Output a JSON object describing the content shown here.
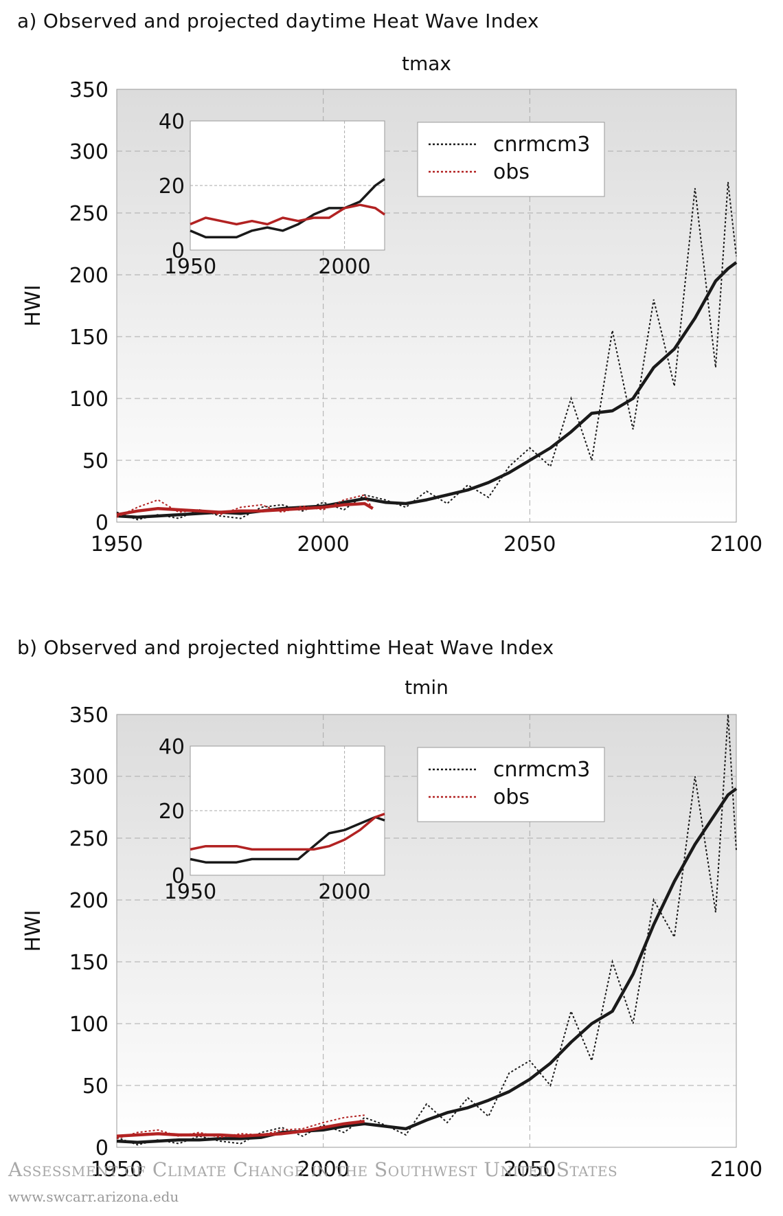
{
  "chart_data": [
    {
      "type": "line",
      "panel_title": "a) Observed and projected daytime Heat Wave Index",
      "title": "tmax",
      "xlabel": "",
      "ylabel": "HWI",
      "xlim": [
        1950,
        2100
      ],
      "ylim": [
        0,
        350
      ],
      "x_ticks": [
        1950,
        2000,
        2050,
        2100
      ],
      "y_ticks": [
        0,
        50,
        100,
        150,
        200,
        250,
        300,
        350
      ],
      "grid": true,
      "legend_position": "top-right",
      "legend": [
        {
          "name": "cnrmcm3",
          "color": "#1a1a1a",
          "style": "dotted"
        },
        {
          "name": "obs",
          "color": "#b22222",
          "style": "dotted"
        }
      ],
      "series": [
        {
          "name": "cnrmcm3",
          "color": "#1a1a1a",
          "x": [
            1950,
            1955,
            1960,
            1965,
            1970,
            1975,
            1980,
            1985,
            1990,
            1995,
            2000,
            2005,
            2010,
            2015,
            2020,
            2025,
            2030,
            2035,
            2040,
            2045,
            2050,
            2055,
            2060,
            2065,
            2070,
            2075,
            2080,
            2085,
            2090,
            2095,
            2098,
            2100
          ],
          "smoothed": [
            5,
            4,
            5,
            6,
            7,
            8,
            7,
            9,
            11,
            12,
            13,
            16,
            19,
            16,
            15,
            18,
            22,
            26,
            32,
            40,
            50,
            60,
            73,
            88,
            90,
            100,
            125,
            140,
            165,
            195,
            205,
            210
          ],
          "annual": [
            8,
            2,
            6,
            3,
            10,
            5,
            3,
            12,
            14,
            9,
            16,
            10,
            22,
            18,
            12,
            25,
            15,
            30,
            20,
            45,
            60,
            45,
            100,
            50,
            155,
            75,
            180,
            110,
            270,
            125,
            275,
            215
          ]
        },
        {
          "name": "obs",
          "color": "#b22222",
          "x": [
            1950,
            1955,
            1960,
            1965,
            1970,
            1975,
            1980,
            1985,
            1990,
            1995,
            2000,
            2005,
            2010,
            2012
          ],
          "smoothed": [
            6,
            9,
            11,
            10,
            9,
            8,
            9,
            9,
            10,
            11,
            12,
            14,
            15,
            11
          ],
          "annual": [
            4,
            12,
            18,
            8,
            10,
            6,
            12,
            14,
            8,
            13,
            10,
            18,
            22,
            10
          ]
        }
      ],
      "inset": {
        "xlim": [
          1950,
          2013
        ],
        "ylim": [
          0,
          40
        ],
        "x_ticks": [
          1950,
          2000
        ],
        "y_ticks": [
          0,
          20,
          40
        ],
        "series": [
          {
            "name": "cnrmcm3",
            "x": [
              1950,
              1955,
              1960,
              1965,
              1970,
              1975,
              1980,
              1985,
              1990,
              1995,
              2000,
              2005,
              2010,
              2013
            ],
            "smoothed": [
              6,
              4,
              4,
              4,
              6,
              7,
              6,
              8,
              11,
              13,
              13,
              15,
              20,
              22
            ]
          },
          {
            "name": "obs",
            "x": [
              1950,
              1955,
              1960,
              1965,
              1970,
              1975,
              1980,
              1985,
              1990,
              1995,
              2000,
              2005,
              2010,
              2013
            ],
            "smoothed": [
              8,
              10,
              9,
              8,
              9,
              8,
              10,
              9,
              10,
              10,
              13,
              14,
              13,
              11
            ]
          }
        ]
      }
    },
    {
      "type": "line",
      "panel_title": "b) Observed and projected nighttime Heat Wave Index",
      "title": "tmin",
      "xlabel": "",
      "ylabel": "HWI",
      "xlim": [
        1950,
        2100
      ],
      "ylim": [
        0,
        350
      ],
      "x_ticks": [
        1950,
        2000,
        2050,
        2100
      ],
      "y_ticks": [
        0,
        50,
        100,
        150,
        200,
        250,
        300,
        350
      ],
      "grid": true,
      "legend_position": "top-right",
      "legend": [
        {
          "name": "cnrmcm3",
          "color": "#1a1a1a",
          "style": "dotted"
        },
        {
          "name": "obs",
          "color": "#b22222",
          "style": "dotted"
        }
      ],
      "series": [
        {
          "name": "cnrmcm3",
          "color": "#1a1a1a",
          "x": [
            1950,
            1955,
            1960,
            1965,
            1970,
            1975,
            1980,
            1985,
            1990,
            1995,
            2000,
            2005,
            2010,
            2015,
            2020,
            2025,
            2030,
            2035,
            2040,
            2045,
            2050,
            2055,
            2060,
            2065,
            2070,
            2075,
            2080,
            2085,
            2090,
            2095,
            2098,
            2100
          ],
          "smoothed": [
            5,
            4,
            5,
            6,
            6,
            7,
            7,
            8,
            12,
            13,
            14,
            17,
            19,
            17,
            15,
            22,
            28,
            32,
            38,
            45,
            55,
            68,
            85,
            100,
            110,
            140,
            180,
            215,
            245,
            270,
            285,
            290
          ],
          "annual": [
            8,
            2,
            6,
            3,
            9,
            5,
            3,
            12,
            16,
            9,
            18,
            12,
            24,
            18,
            10,
            35,
            20,
            40,
            25,
            60,
            70,
            50,
            110,
            70,
            150,
            100,
            200,
            170,
            300,
            190,
            350,
            240
          ]
        },
        {
          "name": "obs",
          "color": "#b22222",
          "x": [
            1950,
            1955,
            1960,
            1965,
            1970,
            1975,
            1980,
            1985,
            1990,
            1995,
            2000,
            2005,
            2010
          ],
          "smoothed": [
            9,
            10,
            11,
            10,
            10,
            10,
            9,
            10,
            11,
            13,
            16,
            19,
            21
          ],
          "annual": [
            7,
            12,
            14,
            9,
            12,
            8,
            11,
            10,
            14,
            15,
            20,
            24,
            26
          ]
        }
      ],
      "inset": {
        "xlim": [
          1950,
          2013
        ],
        "ylim": [
          0,
          40
        ],
        "x_ticks": [
          1950,
          2000
        ],
        "y_ticks": [
          0,
          20,
          40
        ],
        "series": [
          {
            "name": "cnrmcm3",
            "x": [
              1950,
              1955,
              1960,
              1965,
              1970,
              1975,
              1980,
              1985,
              1990,
              1995,
              2000,
              2005,
              2010,
              2013
            ],
            "smoothed": [
              5,
              4,
              4,
              4,
              5,
              5,
              5,
              5,
              9,
              13,
              14,
              16,
              18,
              17
            ]
          },
          {
            "name": "obs",
            "x": [
              1950,
              1955,
              1960,
              1965,
              1970,
              1975,
              1980,
              1985,
              1990,
              1995,
              2000,
              2005,
              2010,
              2013
            ],
            "smoothed": [
              8,
              9,
              9,
              9,
              8,
              8,
              8,
              8,
              8,
              9,
              11,
              14,
              18,
              19
            ]
          }
        ]
      }
    }
  ],
  "footer": {
    "text": "Assessment of Climate Change in the Southwest United States",
    "url": "www.swcarr.arizona.edu"
  }
}
